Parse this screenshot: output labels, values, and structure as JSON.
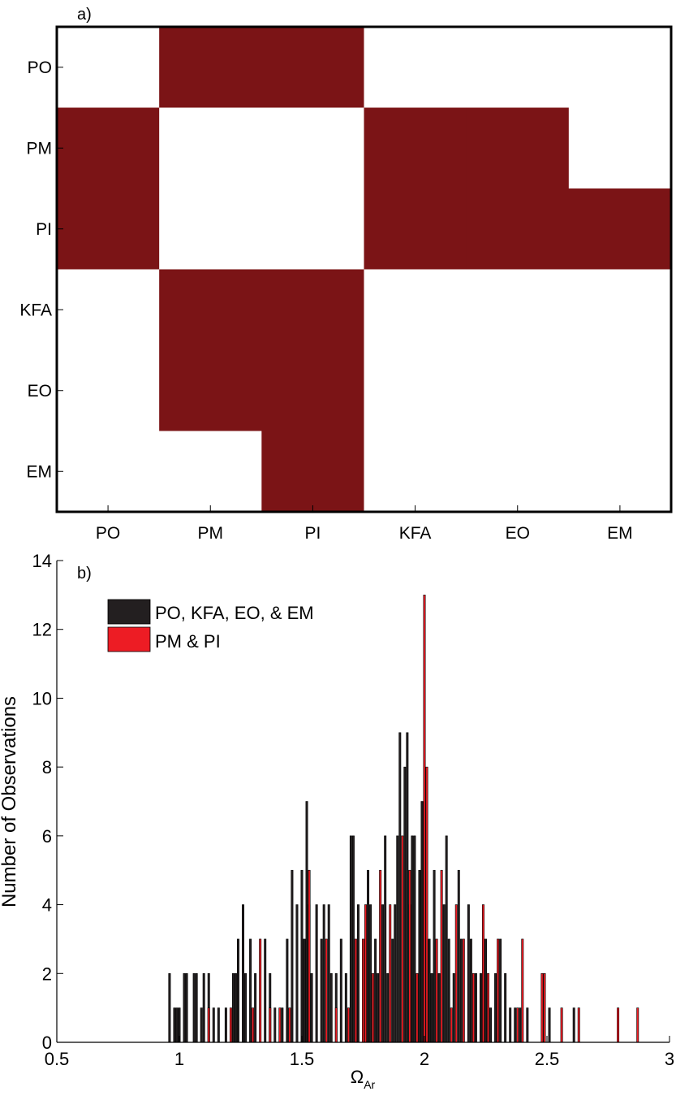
{
  "chart_data": [
    {
      "type": "heatmap",
      "panel_label": "a)",
      "rows": [
        "PO",
        "PM",
        "PI",
        "KFA",
        "EO",
        "EM"
      ],
      "columns": [
        "PO",
        "PM",
        "PI",
        "KFA",
        "EO",
        "EM"
      ],
      "matrix": [
        [
          0,
          1,
          1,
          0,
          0,
          0
        ],
        [
          1,
          0,
          0,
          1,
          1,
          0
        ],
        [
          1,
          0,
          0,
          1,
          1,
          1
        ],
        [
          0,
          1,
          1,
          0,
          0,
          0
        ],
        [
          0,
          1,
          1,
          0,
          0,
          0
        ],
        [
          0,
          0,
          1,
          0,
          0,
          0
        ]
      ],
      "colors": {
        "filled": "#7b1416",
        "empty": "#ffffff"
      }
    },
    {
      "type": "bar",
      "panel_label": "b)",
      "xlabel": "Ω",
      "xlabel_sub": "Ar",
      "ylabel": "Number of Observations",
      "xlim": [
        0.5,
        3
      ],
      "ylim": [
        0,
        14
      ],
      "xticks": [
        "0.5",
        "1",
        "1.5",
        "2",
        "2.5",
        "3"
      ],
      "xtick_values": [
        0.5,
        1,
        1.5,
        2,
        2.5,
        3
      ],
      "yticks": [
        "0",
        "2",
        "4",
        "6",
        "8",
        "10",
        "12",
        "14"
      ],
      "ytick_values": [
        0,
        2,
        4,
        6,
        8,
        10,
        12,
        14
      ],
      "bin_width": 0.01,
      "legend_position": "top-left",
      "series": [
        {
          "name": "PO, KFA, EO, & EM",
          "color": "#231f20",
          "points": [
            [
              0.96,
              2
            ],
            [
              0.98,
              1
            ],
            [
              0.99,
              1
            ],
            [
              1.0,
              1
            ],
            [
              1.02,
              2
            ],
            [
              1.03,
              2
            ],
            [
              1.06,
              2
            ],
            [
              1.07,
              2
            ],
            [
              1.09,
              1
            ],
            [
              1.1,
              2
            ],
            [
              1.12,
              2
            ],
            [
              1.14,
              1
            ],
            [
              1.16,
              1
            ],
            [
              1.19,
              1
            ],
            [
              1.22,
              2
            ],
            [
              1.23,
              2
            ],
            [
              1.24,
              3
            ],
            [
              1.26,
              4
            ],
            [
              1.27,
              2
            ],
            [
              1.29,
              3
            ],
            [
              1.31,
              2
            ],
            [
              1.35,
              3
            ],
            [
              1.37,
              2
            ],
            [
              1.39,
              1
            ],
            [
              1.42,
              1
            ],
            [
              1.44,
              3
            ],
            [
              1.46,
              5
            ],
            [
              1.48,
              4
            ],
            [
              1.5,
              5
            ],
            [
              1.51,
              3
            ],
            [
              1.52,
              7
            ],
            [
              1.53,
              4
            ],
            [
              1.54,
              2
            ],
            [
              1.56,
              4
            ],
            [
              1.58,
              3
            ],
            [
              1.59,
              4
            ],
            [
              1.61,
              4
            ],
            [
              1.62,
              2
            ],
            [
              1.64,
              2
            ],
            [
              1.66,
              3
            ],
            [
              1.68,
              2
            ],
            [
              1.7,
              6
            ],
            [
              1.71,
              6
            ],
            [
              1.73,
              4
            ],
            [
              1.77,
              5
            ],
            [
              1.78,
              4
            ],
            [
              1.8,
              3
            ],
            [
              1.81,
              2
            ],
            [
              1.83,
              4
            ],
            [
              1.84,
              6
            ],
            [
              1.85,
              2
            ],
            [
              1.87,
              3
            ],
            [
              1.88,
              4
            ],
            [
              1.89,
              6
            ],
            [
              1.9,
              9
            ],
            [
              1.92,
              8
            ],
            [
              1.93,
              9
            ],
            [
              1.94,
              4
            ],
            [
              1.95,
              6
            ],
            [
              1.96,
              6
            ],
            [
              1.98,
              5
            ],
            [
              1.99,
              7
            ],
            [
              2.02,
              3
            ],
            [
              2.03,
              2
            ],
            [
              2.04,
              5
            ],
            [
              2.06,
              2
            ],
            [
              2.08,
              4
            ],
            [
              2.09,
              6
            ],
            [
              2.1,
              3
            ],
            [
              2.12,
              2
            ],
            [
              2.14,
              5
            ],
            [
              2.15,
              3
            ],
            [
              2.18,
              4
            ],
            [
              2.19,
              3
            ],
            [
              2.21,
              2
            ],
            [
              2.23,
              2
            ],
            [
              2.25,
              3
            ],
            [
              2.27,
              1
            ],
            [
              2.29,
              2
            ],
            [
              2.31,
              3
            ],
            [
              2.33,
              2
            ],
            [
              2.35,
              1
            ],
            [
              2.37,
              1
            ],
            [
              2.39,
              1
            ],
            [
              2.42,
              1
            ],
            [
              2.51,
              1
            ],
            [
              2.61,
              1
            ]
          ]
        },
        {
          "name": "PM & PI",
          "color": "#ed1c24",
          "points": [
            [
              1.12,
              1
            ],
            [
              1.21,
              1
            ],
            [
              1.3,
              1
            ],
            [
              1.33,
              3
            ],
            [
              1.37,
              1
            ],
            [
              1.41,
              1
            ],
            [
              1.45,
              1
            ],
            [
              1.53,
              5
            ],
            [
              1.6,
              3
            ],
            [
              1.64,
              1
            ],
            [
              1.69,
              1
            ],
            [
              1.72,
              3
            ],
            [
              1.75,
              3
            ],
            [
              1.76,
              4
            ],
            [
              1.79,
              2
            ],
            [
              1.82,
              5
            ],
            [
              1.86,
              4
            ],
            [
              1.91,
              6
            ],
            [
              1.94,
              5
            ],
            [
              1.97,
              2
            ],
            [
              2.0,
              13
            ],
            [
              2.01,
              8
            ],
            [
              2.05,
              3
            ],
            [
              2.07,
              5
            ],
            [
              2.11,
              1
            ],
            [
              2.13,
              4
            ],
            [
              2.16,
              3
            ],
            [
              2.2,
              2
            ],
            [
              2.24,
              4
            ],
            [
              2.26,
              2
            ],
            [
              2.3,
              3
            ],
            [
              2.38,
              1
            ],
            [
              2.4,
              3
            ],
            [
              2.48,
              2
            ],
            [
              2.49,
              2
            ],
            [
              2.56,
              1
            ],
            [
              2.63,
              1
            ],
            [
              2.79,
              1
            ],
            [
              2.87,
              1
            ]
          ]
        }
      ]
    }
  ]
}
